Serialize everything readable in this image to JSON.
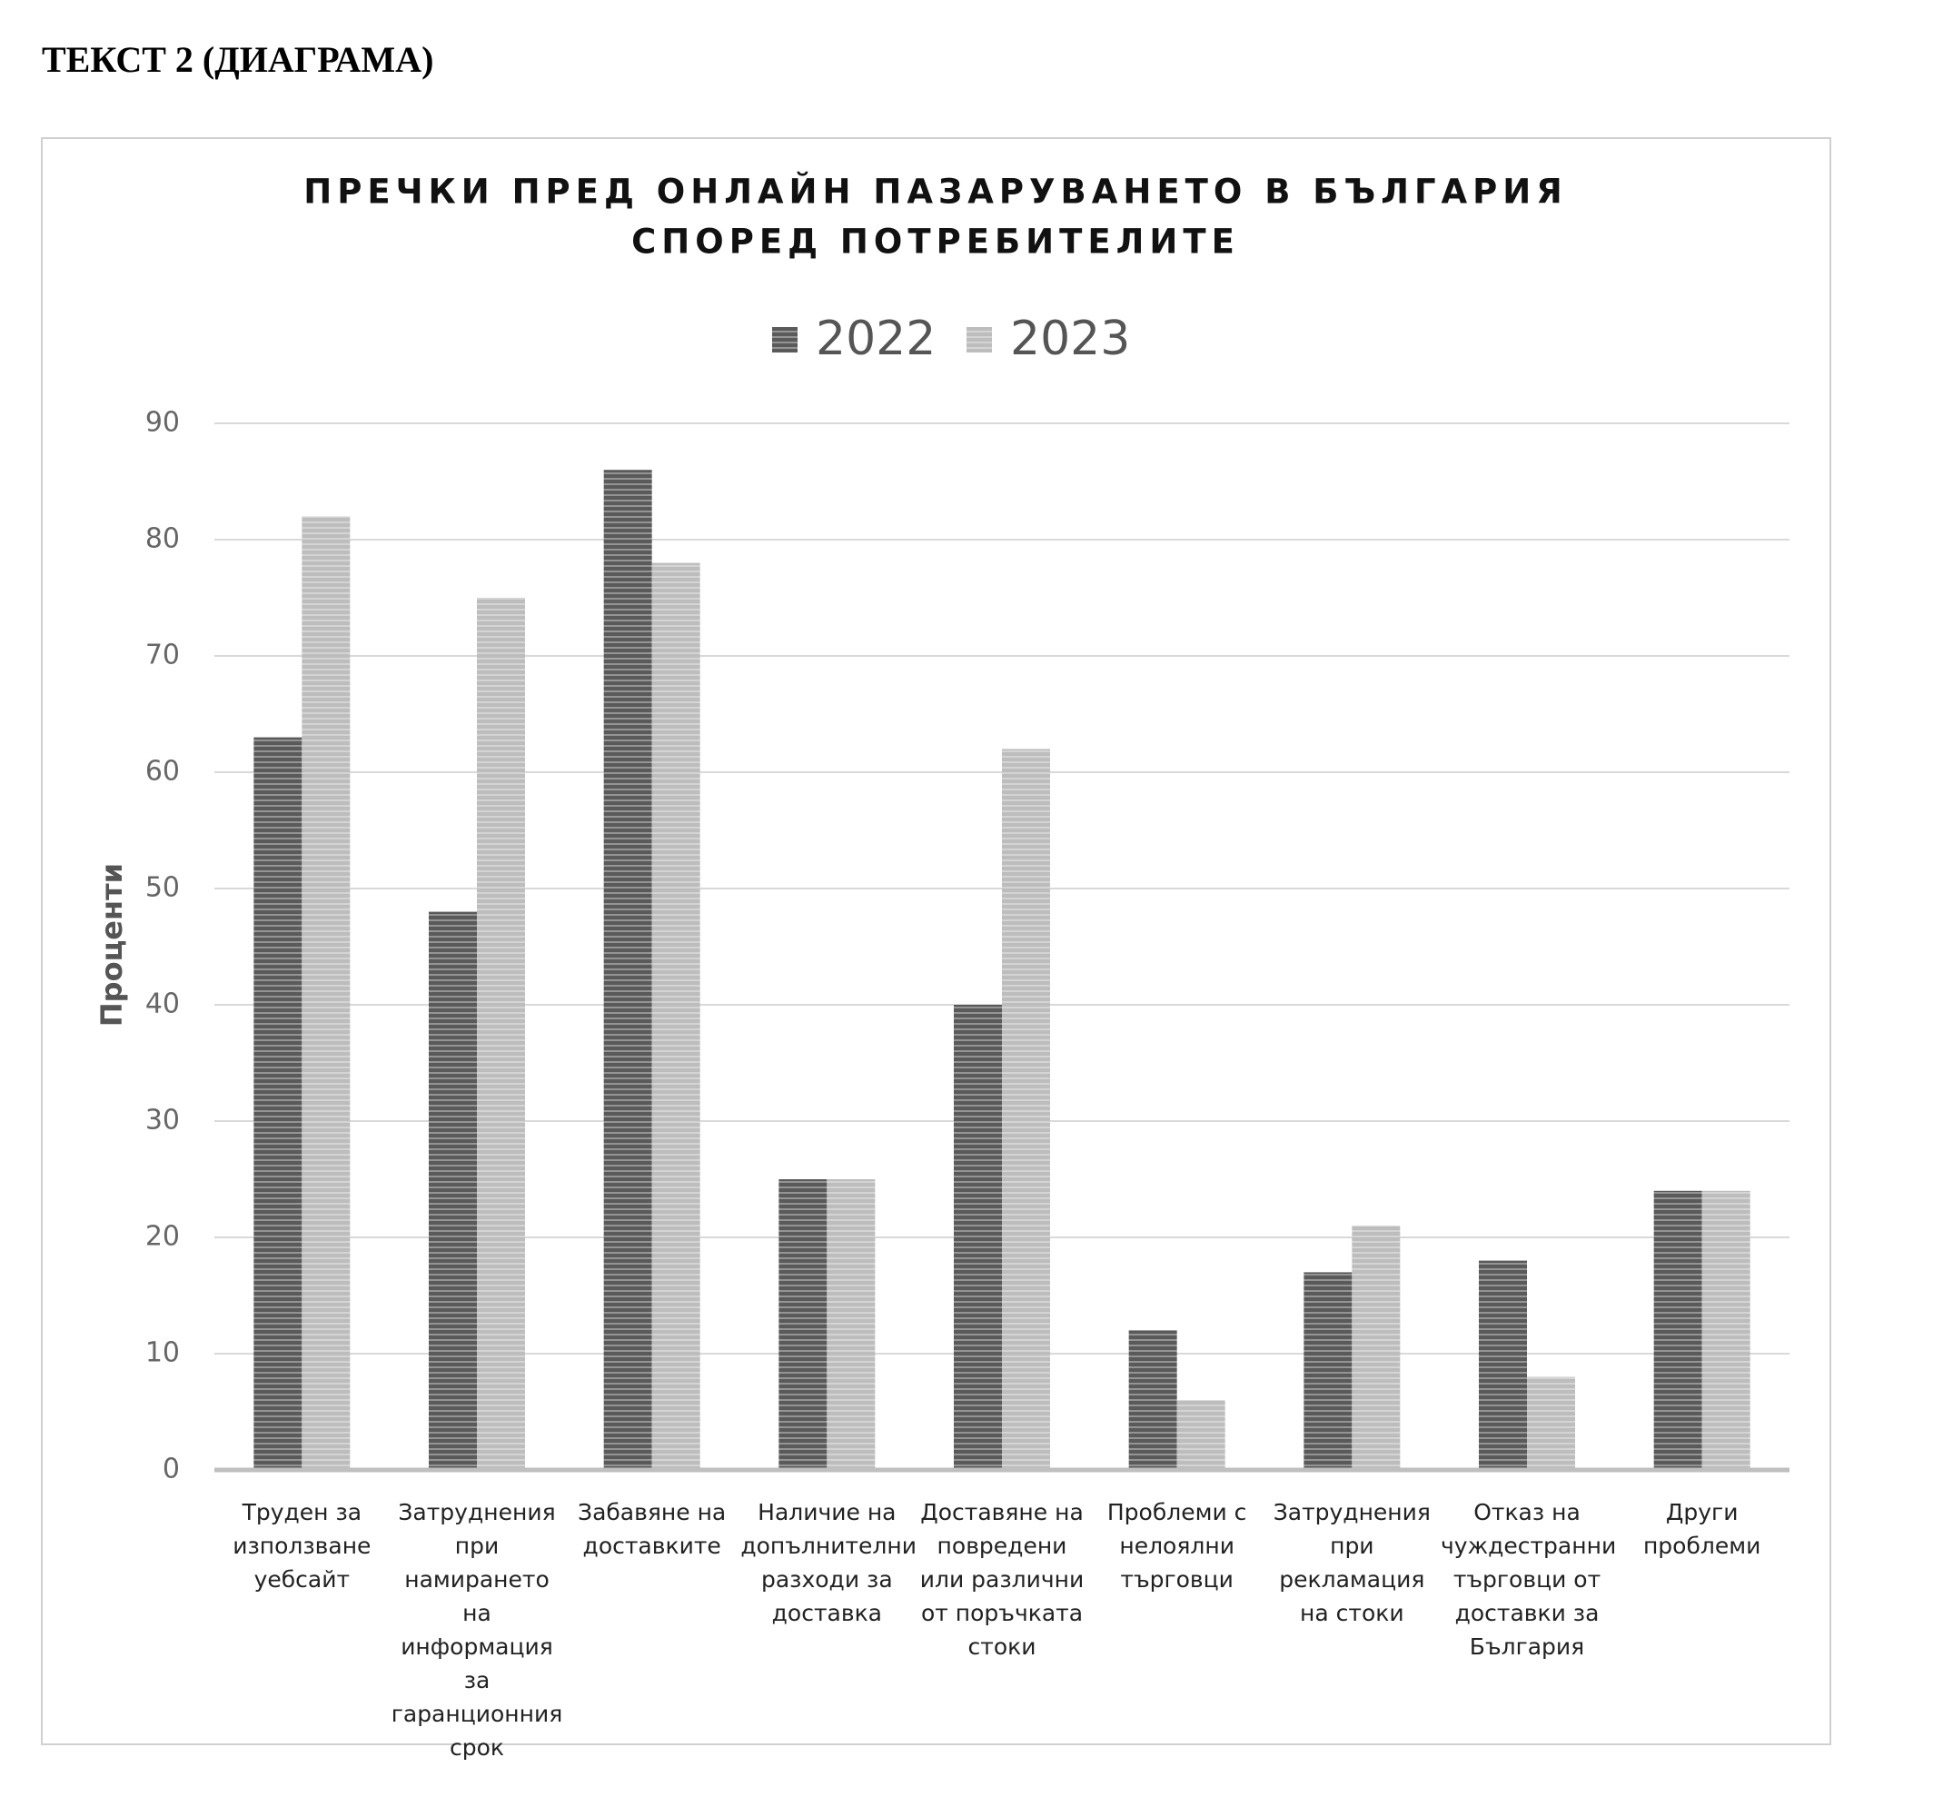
{
  "heading": "ТЕКСТ 2 (ДИАГРАМА)",
  "chart_data": {
    "type": "bar",
    "title": [
      "ПРЕЧКИ ПРЕД ОНЛАЙН ПАЗАРУВАНЕТО В БЪЛГАРИЯ",
      "СПОРЕД ПОТРЕБИТЕЛИТЕ"
    ],
    "y_label": "Проценти",
    "categories": [
      "Труден за използване уебсайт",
      "Затруднения при намирането на информация за гаранционния срок",
      "Забавяне на доставките",
      "Наличие на допълнителни разходи за доставка",
      "Доставяне на повредени или различни от поръчката стоки",
      "Проблеми с нелоялни търговци",
      "Затруднения при рекламация на стоки",
      "Отказ на чуждестранни търговци от доставки за България",
      "Други проблеми"
    ],
    "series": [
      {
        "name": "2022",
        "color": "#5a5a5a",
        "values": [
          63,
          48,
          86,
          25,
          40,
          12,
          17,
          18,
          24
        ]
      },
      {
        "name": "2023",
        "color": "#bdbdbd",
        "values": [
          82,
          75,
          78,
          25,
          62,
          6,
          21,
          8,
          24
        ]
      }
    ],
    "ylim": [
      0,
      90
    ],
    "yticks": [
      0,
      10,
      20,
      30,
      40,
      50,
      60,
      70,
      80,
      90
    ],
    "grid": true,
    "legend": "top"
  }
}
